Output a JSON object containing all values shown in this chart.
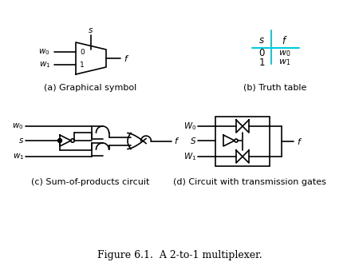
{
  "title": "Figure 6.1.  A 2-to-1 multiplexer.",
  "subtitle_a": "(a) Graphical symbol",
  "subtitle_b": "(b) Truth table",
  "subtitle_c": "(c) Sum-of-products circuit",
  "subtitle_d": "(d) Circuit with transmission gates",
  "line_color": "#000000",
  "table_line_color": "#00ccdd",
  "bg_color": "#ffffff"
}
